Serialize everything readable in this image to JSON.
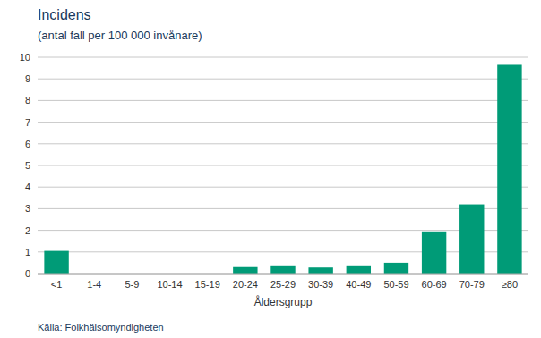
{
  "chart_data": {
    "type": "bar",
    "title": "Incidens",
    "subtitle": "(antal fall per 100 000 invånare)",
    "x_label": "Åldersgrupp",
    "source": "Källa: Folkhälsomyndigheten",
    "categories": [
      "<1",
      "1-4",
      "5-9",
      "10-14",
      "15-19",
      "20-24",
      "25-29",
      "30-39",
      "40-49",
      "50-59",
      "60-69",
      "70-79",
      "≥80"
    ],
    "values": [
      1.05,
      0.0,
      0.0,
      0.0,
      0.0,
      0.3,
      0.38,
      0.28,
      0.38,
      0.5,
      1.95,
      3.2,
      9.65
    ],
    "color": "#009b77",
    "ylim": [
      0,
      10
    ],
    "yticks": [
      0,
      1,
      2,
      3,
      4,
      5,
      6,
      7,
      8,
      9,
      10
    ],
    "grid": true
  }
}
